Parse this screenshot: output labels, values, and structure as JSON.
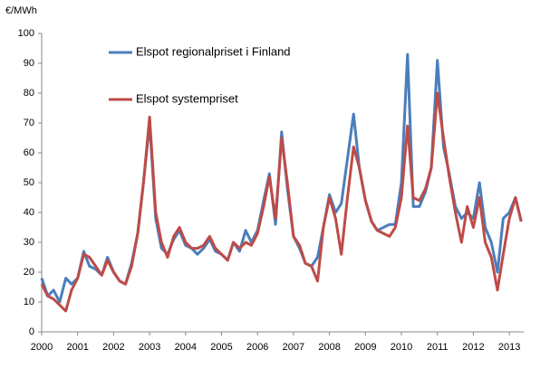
{
  "chart_data": {
    "type": "line",
    "ylabel": "€/MWh",
    "x": [
      2000,
      2000.17,
      2000.33,
      2000.5,
      2000.67,
      2000.83,
      2001,
      2001.17,
      2001.33,
      2001.5,
      2001.67,
      2001.83,
      2002,
      2002.17,
      2002.33,
      2002.5,
      2002.67,
      2002.83,
      2003,
      2003.17,
      2003.33,
      2003.5,
      2003.67,
      2003.83,
      2004,
      2004.17,
      2004.33,
      2004.5,
      2004.67,
      2004.83,
      2005,
      2005.17,
      2005.33,
      2005.5,
      2005.67,
      2005.83,
      2006,
      2006.17,
      2006.33,
      2006.5,
      2006.67,
      2006.83,
      2007,
      2007.17,
      2007.33,
      2007.5,
      2007.67,
      2007.83,
      2008,
      2008.17,
      2008.33,
      2008.5,
      2008.67,
      2008.83,
      2009,
      2009.17,
      2009.33,
      2009.5,
      2009.67,
      2009.83,
      2010,
      2010.17,
      2010.33,
      2010.5,
      2010.67,
      2010.83,
      2011,
      2011.17,
      2011.33,
      2011.5,
      2011.67,
      2011.83,
      2012,
      2012.17,
      2012.33,
      2012.5,
      2012.67,
      2012.83,
      2013,
      2013.17,
      2013.33
    ],
    "series": [
      {
        "name": "Elspot regionalpriset i Finland",
        "color": "#4a7ebb",
        "values": [
          18,
          12,
          14,
          10,
          18,
          16,
          18,
          27,
          22,
          21,
          19,
          25,
          20,
          17,
          16,
          23,
          33,
          50,
          70,
          38,
          28,
          26,
          31,
          34,
          29,
          28,
          26,
          28,
          31,
          27,
          26,
          24,
          30,
          27,
          34,
          30,
          34,
          44,
          53,
          36,
          67,
          48,
          32,
          28,
          23,
          22,
          25,
          35,
          46,
          40,
          43,
          58,
          73,
          55,
          44,
          37,
          34,
          35,
          36,
          36,
          50,
          93,
          42,
          42,
          47,
          55,
          91,
          62,
          53,
          42,
          38,
          40,
          38,
          50,
          35,
          30,
          20,
          38,
          40,
          45,
          37
        ]
      },
      {
        "name": "Elspot systempriset",
        "color": "#be4b48",
        "values": [
          16,
          12,
          11,
          9,
          7,
          14,
          18,
          26,
          25,
          22,
          19,
          24,
          20,
          17,
          16,
          22,
          33,
          50,
          72,
          40,
          30,
          25,
          32,
          35,
          30,
          28,
          28,
          29,
          32,
          28,
          26,
          24,
          30,
          28,
          30,
          29,
          33,
          42,
          52,
          38,
          65,
          50,
          32,
          29,
          23,
          22,
          17,
          35,
          45,
          38,
          26,
          45,
          62,
          55,
          44,
          37,
          34,
          33,
          32,
          35,
          45,
          69,
          45,
          44,
          48,
          55,
          80,
          65,
          52,
          40,
          30,
          42,
          35,
          45,
          30,
          25,
          14,
          26,
          38,
          45,
          37
        ]
      }
    ],
    "xlim": [
      2000,
      2013.4
    ],
    "xticks": [
      2000,
      2001,
      2002,
      2003,
      2004,
      2005,
      2006,
      2007,
      2008,
      2009,
      2010,
      2011,
      2012,
      2013
    ],
    "ylim": [
      0,
      100
    ],
    "yticks": [
      0,
      10,
      20,
      30,
      40,
      50,
      60,
      70,
      80,
      90,
      100
    ],
    "grid": false
  }
}
